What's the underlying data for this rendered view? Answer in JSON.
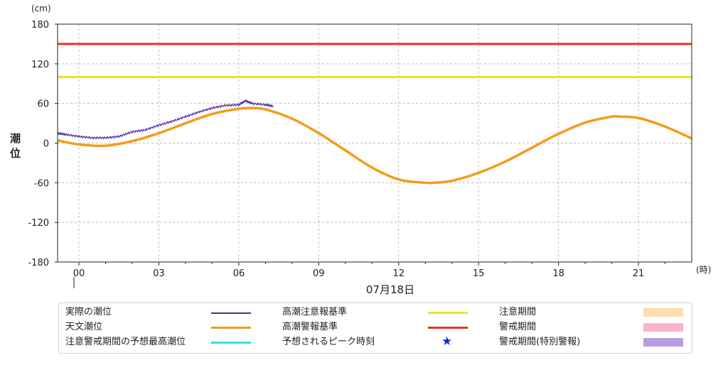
{
  "chart_data": {
    "type": "line",
    "y_unit": "(cm)",
    "x_unit": "(時)",
    "ylabel": "潮位",
    "date_label": "07月18日",
    "ylim": [
      -180,
      180
    ],
    "xlim": [
      -0.8,
      23
    ],
    "y_ticks": [
      180,
      120,
      60,
      0,
      -60,
      -120,
      -180
    ],
    "x_ticks": [
      {
        "value": 0,
        "label": "00"
      },
      {
        "value": 3,
        "label": "03"
      },
      {
        "value": 6,
        "label": "06"
      },
      {
        "value": 9,
        "label": "09"
      },
      {
        "value": 12,
        "label": "12"
      },
      {
        "value": 15,
        "label": "15"
      },
      {
        "value": 18,
        "label": "18"
      },
      {
        "value": 21,
        "label": "21"
      }
    ],
    "grid": true,
    "series": [
      {
        "name": "天文潮位",
        "color": "#f39c1a",
        "x": [
          -0.8,
          0,
          1,
          2,
          3,
          4,
          5,
          6,
          6.5,
          7,
          8,
          9,
          10,
          11,
          12,
          13,
          13.3,
          14,
          15,
          16,
          17,
          18,
          19,
          20,
          20.3,
          21,
          22,
          23
        ],
        "y": [
          4,
          -2,
          -4,
          3,
          15,
          30,
          44,
          52,
          53,
          51,
          37,
          15,
          -11,
          -37,
          -55,
          -60,
          -60,
          -57,
          -45,
          -28,
          -7,
          14,
          31,
          40,
          40,
          38,
          25,
          7
        ]
      },
      {
        "name": "実際の潮位",
        "color": "#4b2aa8",
        "x": [
          -0.8,
          -0.5,
          0,
          0.5,
          1,
          1.5,
          2,
          2.5,
          3,
          3.5,
          4,
          4.5,
          5,
          5.5,
          6,
          6.25,
          6.5,
          7,
          7.3
        ],
        "y": [
          15,
          13,
          10,
          8,
          8,
          10,
          17,
          20,
          27,
          33,
          40,
          47,
          53,
          57,
          58,
          64,
          60,
          58,
          56
        ]
      },
      {
        "name": "高潮注意報基準",
        "color": "#f5e11c",
        "x": [
          -0.8,
          23
        ],
        "y": [
          100,
          100
        ]
      },
      {
        "name": "高潮警報基準",
        "color": "#e8341c",
        "x": [
          -0.8,
          23
        ],
        "y": [
          150,
          150
        ]
      }
    ]
  },
  "legend": {
    "actual": {
      "label": "実際の潮位",
      "color": "#4b2aa8"
    },
    "astro": {
      "label": "天文潮位",
      "color": "#f39c1a"
    },
    "forecast_max": {
      "label": "注意警戒期間の予想最高潮位",
      "color": "#33e0ea"
    },
    "advisory": {
      "label": "高潮注意報基準",
      "color": "#f5e11c"
    },
    "warning": {
      "label": "高潮警報基準",
      "color": "#e8341c"
    },
    "peak": {
      "label": "予想されるピーク時刻",
      "icon": "star-icon",
      "color": "#0a2fc4"
    },
    "advisory_period": {
      "label": "注意期間",
      "color": "#fddcb0"
    },
    "warning_period": {
      "label": "警戒期間",
      "color": "#f7b5ce"
    },
    "special_period": {
      "label": "警戒期間(特別警報)",
      "color": "#b79de0"
    }
  }
}
